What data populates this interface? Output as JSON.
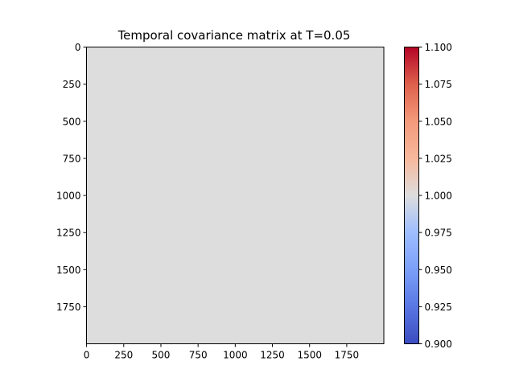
{
  "chart_data": {
    "type": "heatmap",
    "title": "Temporal covariance matrix at T=0.05",
    "xlabel": "",
    "ylabel": "",
    "matrix_size": 2000,
    "uniform_value": 1.0,
    "cell_color": "#dddddd",
    "x_ticks": [
      0,
      250,
      500,
      750,
      1000,
      1250,
      1500,
      1750
    ],
    "x_tick_labels": [
      "0",
      "250",
      "500",
      "750",
      "1000",
      "1250",
      "1500",
      "1750"
    ],
    "y_ticks": [
      0,
      250,
      500,
      750,
      1000,
      1250,
      1500,
      1750
    ],
    "y_tick_labels": [
      "0",
      "250",
      "500",
      "750",
      "1000",
      "1250",
      "1500",
      "1750"
    ],
    "colorbar": {
      "cmap": "coolwarm",
      "range": [
        0.9,
        1.1
      ],
      "ticks": [
        0.9,
        0.925,
        0.95,
        0.975,
        1.0,
        1.025,
        1.05,
        1.075,
        1.1
      ],
      "tick_labels": [
        "0.900",
        "0.925",
        "0.950",
        "0.975",
        "1.000",
        "1.025",
        "1.050",
        "1.075",
        "1.100"
      ]
    },
    "grid": false,
    "legend": "none"
  }
}
